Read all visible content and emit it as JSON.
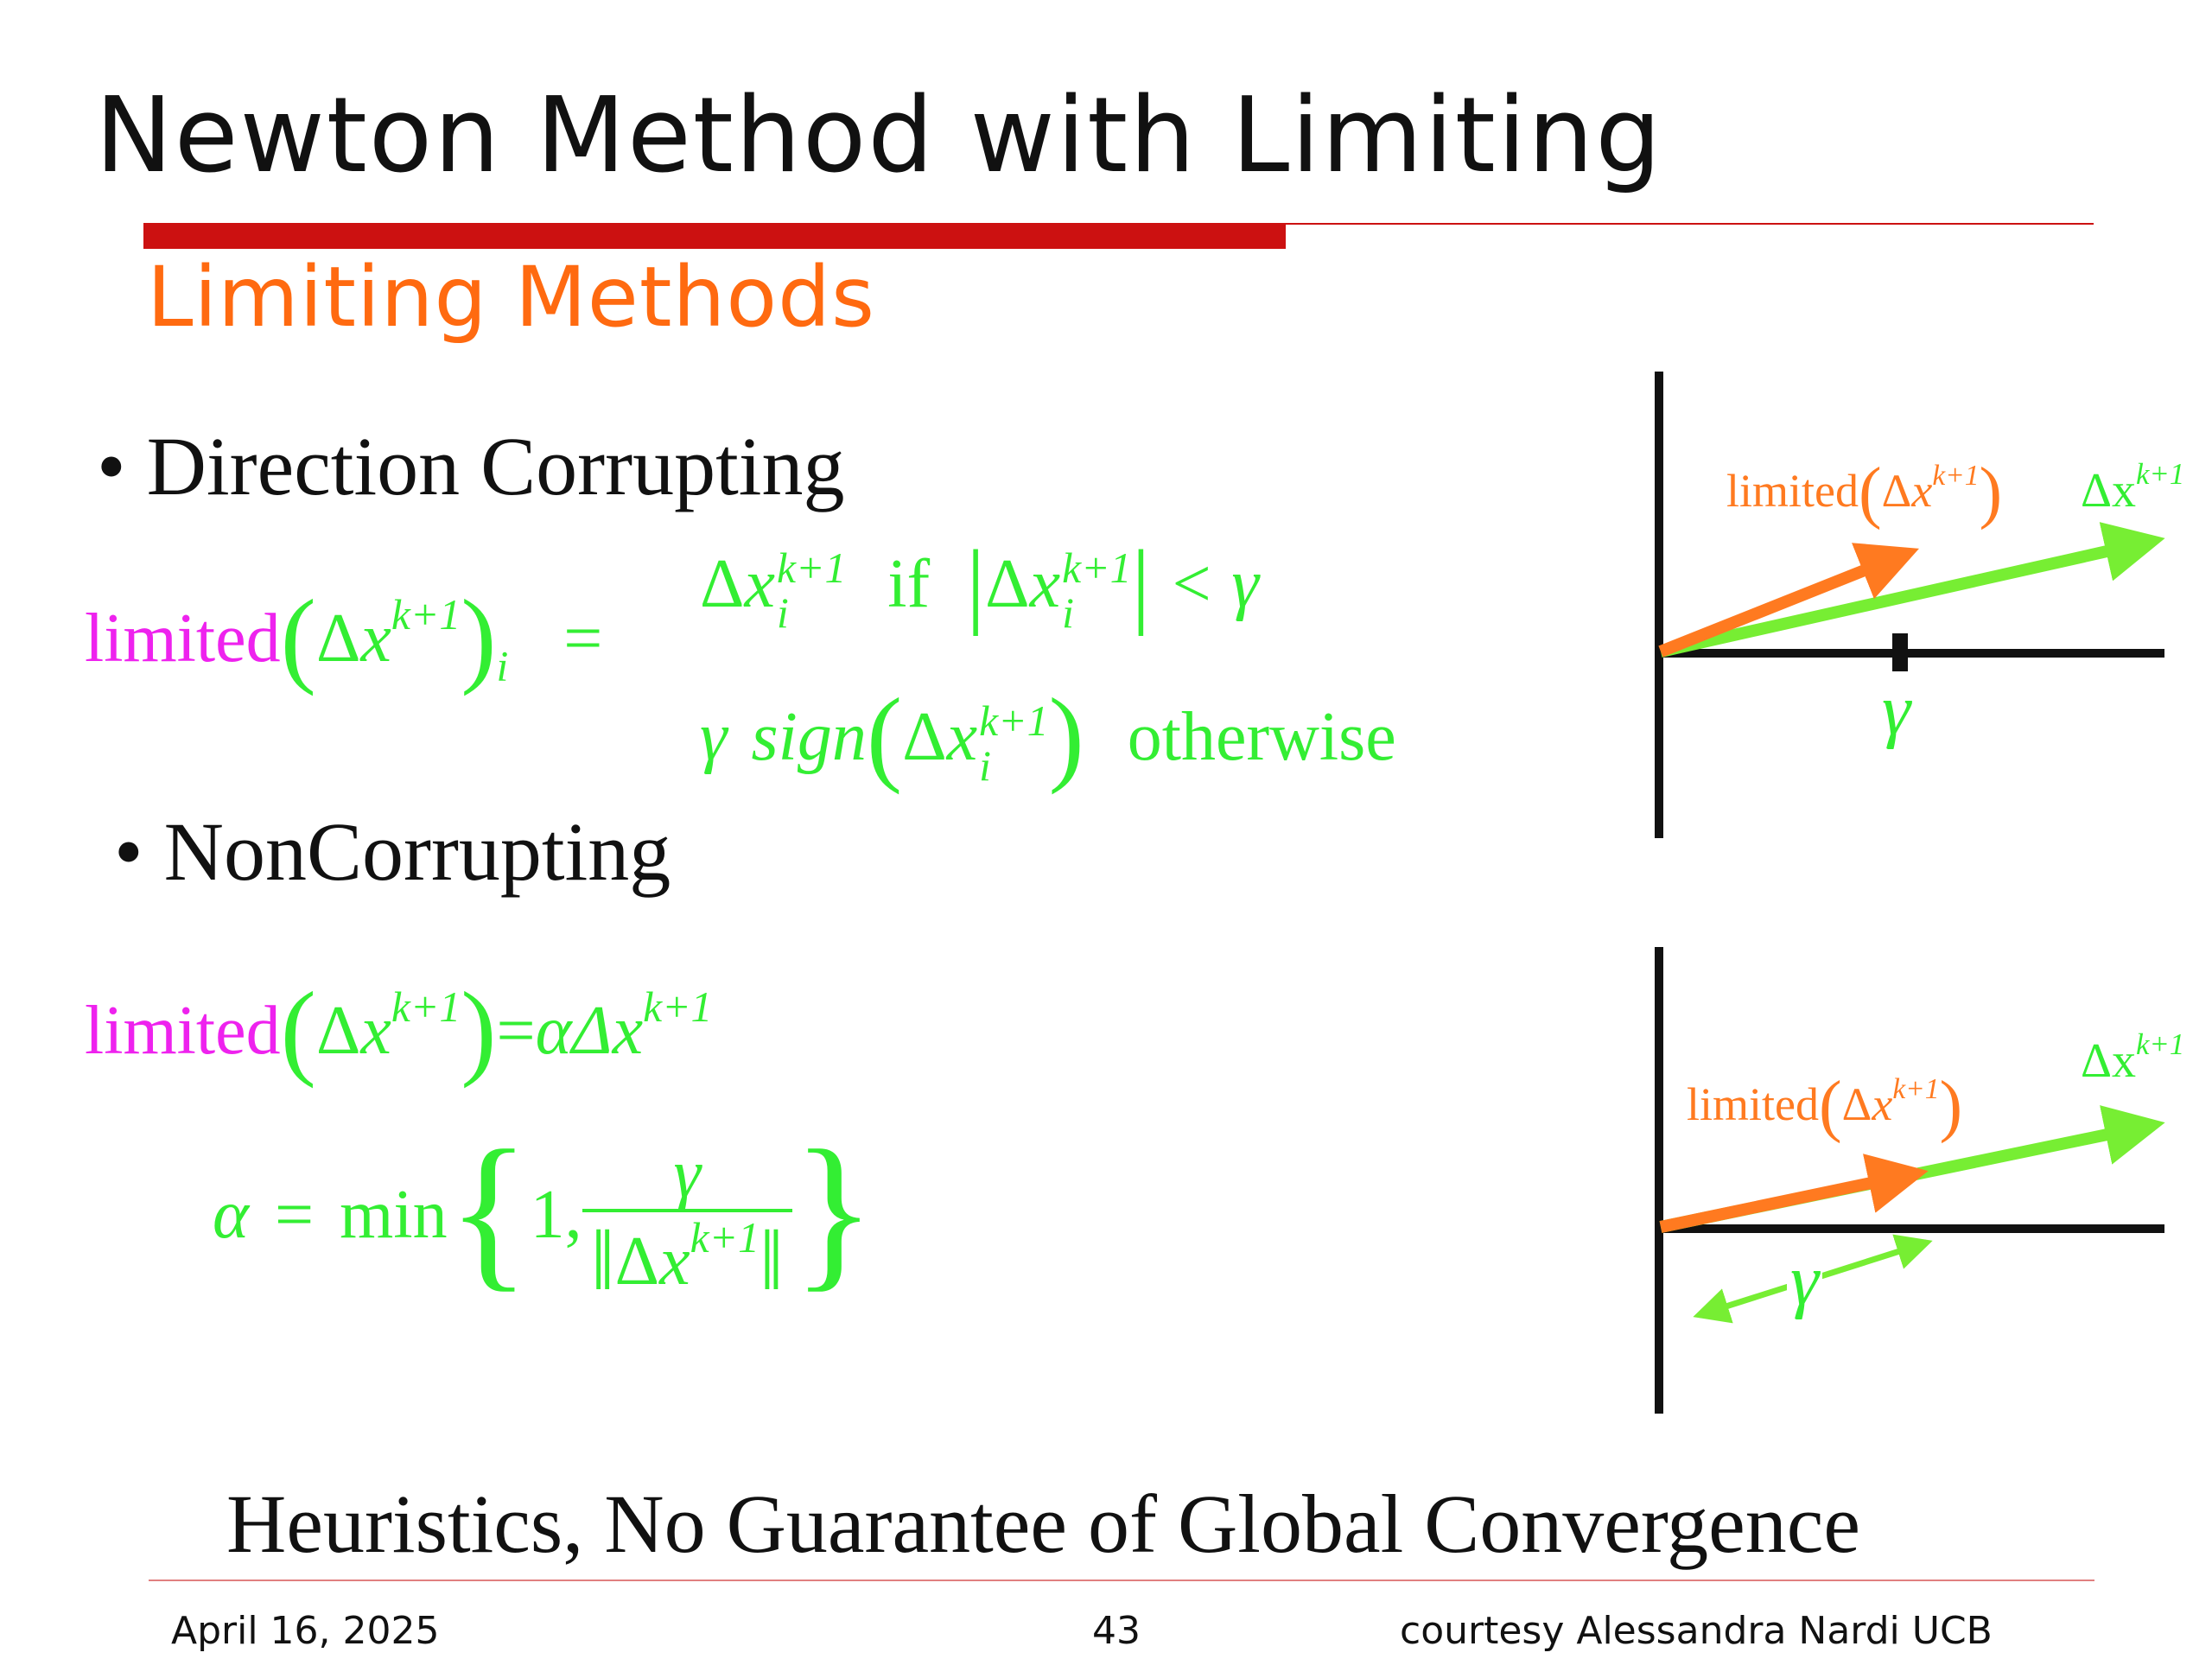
{
  "slide": {
    "title": "Newton Method with Limiting",
    "subtitle": "Limiting Methods",
    "bullets": [
      "• Direction Corrupting",
      "• NonCorrupting"
    ],
    "conclusion": "Heuristics, No Guarantee of Global Convergence"
  },
  "equations": {
    "limited": "limited",
    "delta": "Δ",
    "x": "x",
    "k1": "k+1",
    "i": "i",
    "equals": "=",
    "if": "if",
    "less_gamma": "< γ",
    "gamma": "γ",
    "sign": "sign",
    "otherwise": "otherwise",
    "alpha": "α",
    "alpha_delta": "αΔ",
    "min": "min",
    "one": "1,"
  },
  "diagram1": {
    "green_label": "Δx",
    "orange_label": "limited",
    "superscript": "k+1",
    "tick_label": "γ"
  },
  "diagram2": {
    "green_label": "Δx",
    "orange_label": "limited",
    "superscript": "k+1",
    "span_label": "γ"
  },
  "footer": {
    "date": "April 16, 2025",
    "page": "43",
    "credit": "courtesy Alessandra Nardi UCB"
  },
  "colors": {
    "title_rule": "#cc1111",
    "subtitle": "#ff6a10",
    "magenta": "#ee22ee",
    "green": "#33ee33",
    "orange": "#ff7a20"
  }
}
